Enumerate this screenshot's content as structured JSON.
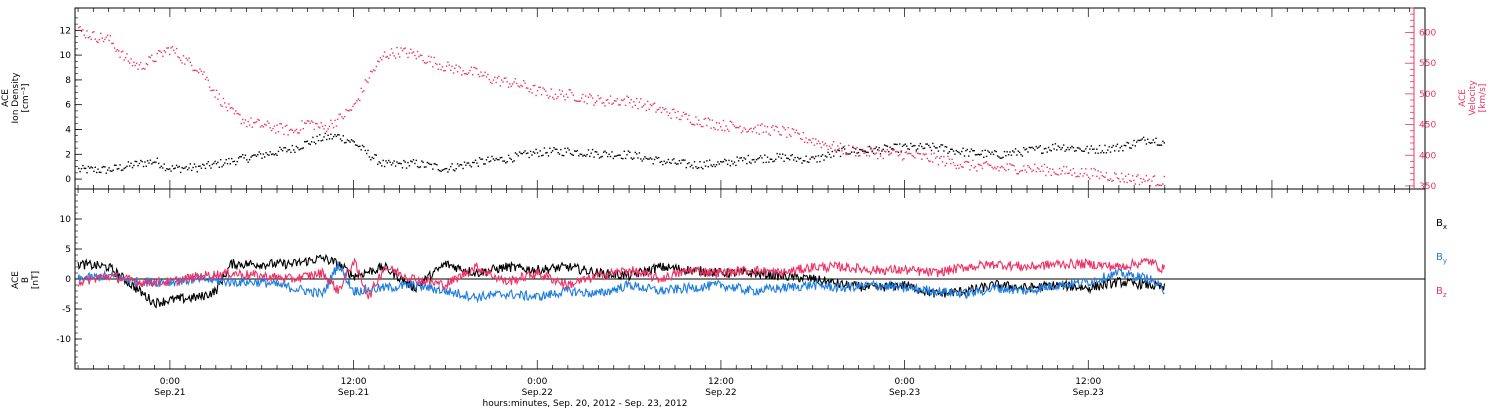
{
  "x_axis": {
    "label": "hours:minutes, Sep. 20, 2012 - Sep. 23, 2012",
    "ticks": [
      {
        "time": "0:00",
        "date": "Sep.21",
        "hour": 0
      },
      {
        "time": "12:00",
        "date": "Sep.21",
        "hour": 12
      },
      {
        "time": "0:00",
        "date": "Sep.22",
        "hour": 24
      },
      {
        "time": "12:00",
        "date": "Sep.22",
        "hour": 36
      },
      {
        "time": "0:00",
        "date": "Sep.23",
        "hour": 48
      },
      {
        "time": "12:00",
        "date": "Sep.23",
        "hour": 60
      }
    ]
  },
  "panels": {
    "top": {
      "left_label": [
        "ACE",
        "Ion Density",
        "[cm⁻³]"
      ],
      "right_label": [
        "ACE",
        "Velocity",
        "[km/s]"
      ]
    },
    "bottom": {
      "left_label": [
        "ACE",
        "B",
        "[nT]"
      ]
    }
  },
  "chart_data": [
    {
      "type": "scatter",
      "panel": "top",
      "xlim": [
        -6.2,
        82
      ],
      "x_unit": "hours from 0:00 Sep.21 2012",
      "series": [
        {
          "axis": "left",
          "color": "#000000",
          "ylim": [
            -0.8,
            13.8
          ],
          "y_ticks": [
            0,
            2,
            4,
            6,
            8,
            10,
            12
          ],
          "points": [
            [
              -6,
              0.8
            ],
            [
              -4,
              0.8
            ],
            [
              -2,
              1.3
            ],
            [
              -1,
              1.5
            ],
            [
              0,
              0.9
            ],
            [
              2,
              1.0
            ],
            [
              4,
              1.5
            ],
            [
              6,
              2.0
            ],
            [
              8,
              2.5
            ],
            [
              9,
              3.0
            ],
            [
              10,
              3.4
            ],
            [
              11,
              3.5
            ],
            [
              12,
              3.0
            ],
            [
              13,
              2.0
            ],
            [
              14,
              1.2
            ],
            [
              16,
              1.3
            ],
            [
              18,
              0.9
            ],
            [
              20,
              1.4
            ],
            [
              22,
              1.7
            ],
            [
              24,
              2.2
            ],
            [
              26,
              2.3
            ],
            [
              28,
              2.1
            ],
            [
              30,
              2.0
            ],
            [
              32,
              1.5
            ],
            [
              34,
              1.2
            ],
            [
              36,
              1.3
            ],
            [
              38,
              1.7
            ],
            [
              40,
              1.8
            ],
            [
              42,
              1.6
            ],
            [
              44,
              2.3
            ],
            [
              46,
              2.4
            ],
            [
              48,
              2.6
            ],
            [
              50,
              2.6
            ],
            [
              52,
              2.2
            ],
            [
              54,
              2.0
            ],
            [
              56,
              2.3
            ],
            [
              58,
              2.7
            ],
            [
              60,
              2.4
            ],
            [
              62,
              2.6
            ],
            [
              64,
              3.3
            ],
            [
              65,
              3.0
            ]
          ]
        },
        {
          "axis": "right",
          "color": "#ee3366",
          "ylim": [
            345,
            640
          ],
          "y_ticks": [
            350,
            400,
            450,
            500,
            550,
            600
          ],
          "points": [
            [
              -6,
              605
            ],
            [
              -5,
              595
            ],
            [
              -4,
              590
            ],
            [
              -3,
              560
            ],
            [
              -2,
              545
            ],
            [
              -1,
              560
            ],
            [
              0,
              575
            ],
            [
              1,
              555
            ],
            [
              2,
              540
            ],
            [
              3,
              500
            ],
            [
              4,
              470
            ],
            [
              5,
              455
            ],
            [
              6,
              450
            ],
            [
              7,
              445
            ],
            [
              8,
              440
            ],
            [
              9,
              455
            ],
            [
              10,
              445
            ],
            [
              11,
              460
            ],
            [
              12,
              480
            ],
            [
              13,
              530
            ],
            [
              14,
              565
            ],
            [
              15,
              570
            ],
            [
              16,
              565
            ],
            [
              17,
              555
            ],
            [
              18,
              545
            ],
            [
              19,
              540
            ],
            [
              20,
              535
            ],
            [
              21,
              525
            ],
            [
              22,
              520
            ],
            [
              23,
              515
            ],
            [
              24,
              505
            ],
            [
              25,
              500
            ],
            [
              26,
              500
            ],
            [
              28,
              490
            ],
            [
              30,
              490
            ],
            [
              32,
              475
            ],
            [
              34,
              460
            ],
            [
              36,
              450
            ],
            [
              38,
              445
            ],
            [
              40,
              440
            ],
            [
              42,
              425
            ],
            [
              44,
              410
            ],
            [
              46,
              405
            ],
            [
              48,
              402
            ],
            [
              50,
              395
            ],
            [
              52,
              385
            ],
            [
              54,
              380
            ],
            [
              56,
              380
            ],
            [
              58,
              375
            ],
            [
              60,
              372
            ],
            [
              62,
              365
            ],
            [
              64,
              360
            ],
            [
              65,
              358
            ]
          ]
        }
      ]
    },
    {
      "type": "line",
      "panel": "bottom",
      "xlim": [
        -6.2,
        82
      ],
      "ylim": [
        -15,
        15
      ],
      "y_ticks": [
        -10,
        -5,
        0,
        5,
        10
      ],
      "series": [
        {
          "name": "Bx",
          "color": "#000000",
          "points": [
            [
              -6,
              2.5
            ],
            [
              -4,
              2.0
            ],
            [
              -2,
              -2.0
            ],
            [
              -1,
              -4.0
            ],
            [
              0,
              -3.5
            ],
            [
              2,
              -3.0
            ],
            [
              3,
              -2.0
            ],
            [
              4,
              2.5
            ],
            [
              6,
              2.5
            ],
            [
              8,
              2.5
            ],
            [
              10,
              3.5
            ],
            [
              11,
              2.5
            ],
            [
              12,
              0.5
            ],
            [
              14,
              2.0
            ],
            [
              16,
              -1.5
            ],
            [
              18,
              2.5
            ],
            [
              20,
              1.0
            ],
            [
              22,
              2.0
            ],
            [
              24,
              1.5
            ],
            [
              26,
              2.0
            ],
            [
              28,
              1.0
            ],
            [
              30,
              0.5
            ],
            [
              32,
              2.0
            ],
            [
              34,
              1.5
            ],
            [
              36,
              1.0
            ],
            [
              38,
              1.0
            ],
            [
              40,
              0.5
            ],
            [
              42,
              0.0
            ],
            [
              44,
              -1.0
            ],
            [
              46,
              -1.5
            ],
            [
              48,
              -1.0
            ],
            [
              50,
              -2.5
            ],
            [
              52,
              -2.0
            ],
            [
              54,
              -1.0
            ],
            [
              56,
              -1.5
            ],
            [
              58,
              -1.0
            ],
            [
              60,
              -1.5
            ],
            [
              62,
              -0.5
            ],
            [
              64,
              -1.0
            ],
            [
              65,
              -1.5
            ]
          ]
        },
        {
          "name": "By",
          "color": "#1f7de0",
          "points": [
            [
              -6,
              0.0
            ],
            [
              -4,
              0.5
            ],
            [
              -2,
              -0.5
            ],
            [
              0,
              -0.5
            ],
            [
              2,
              0.0
            ],
            [
              4,
              -0.5
            ],
            [
              6,
              -0.5
            ],
            [
              8,
              -1.5
            ],
            [
              10,
              -2.5
            ],
            [
              11,
              2.5
            ],
            [
              12,
              -2.0
            ],
            [
              14,
              -1.5
            ],
            [
              16,
              -1.0
            ],
            [
              18,
              -2.0
            ],
            [
              20,
              -3.0
            ],
            [
              22,
              -2.5
            ],
            [
              24,
              -3.0
            ],
            [
              26,
              -2.0
            ],
            [
              28,
              -2.5
            ],
            [
              30,
              -1.0
            ],
            [
              32,
              -2.0
            ],
            [
              34,
              -1.5
            ],
            [
              36,
              -1.0
            ],
            [
              38,
              -2.0
            ],
            [
              40,
              -1.5
            ],
            [
              42,
              -1.0
            ],
            [
              44,
              -1.5
            ],
            [
              46,
              -1.0
            ],
            [
              48,
              -1.5
            ],
            [
              50,
              -2.0
            ],
            [
              52,
              -2.5
            ],
            [
              54,
              -1.5
            ],
            [
              56,
              -2.0
            ],
            [
              58,
              -1.0
            ],
            [
              60,
              -0.5
            ],
            [
              62,
              1.0
            ],
            [
              64,
              0.0
            ],
            [
              65,
              -2.0
            ]
          ]
        },
        {
          "name": "Bz",
          "color": "#ee3366",
          "points": [
            [
              -6,
              -0.5
            ],
            [
              -4,
              0.5
            ],
            [
              -2,
              -0.5
            ],
            [
              0,
              -0.5
            ],
            [
              2,
              0.5
            ],
            [
              4,
              1.0
            ],
            [
              6,
              0.5
            ],
            [
              8,
              0.0
            ],
            [
              10,
              1.0
            ],
            [
              11,
              -2.0
            ],
            [
              12,
              3.0
            ],
            [
              13,
              -3.0
            ],
            [
              14,
              2.0
            ],
            [
              16,
              0.0
            ],
            [
              18,
              -1.0
            ],
            [
              20,
              2.0
            ],
            [
              22,
              -0.5
            ],
            [
              24,
              1.0
            ],
            [
              26,
              -1.0
            ],
            [
              28,
              0.5
            ],
            [
              30,
              1.5
            ],
            [
              32,
              0.0
            ],
            [
              34,
              1.5
            ],
            [
              36,
              1.0
            ],
            [
              38,
              1.5
            ],
            [
              40,
              1.0
            ],
            [
              42,
              2.0
            ],
            [
              44,
              2.0
            ],
            [
              46,
              1.5
            ],
            [
              48,
              1.5
            ],
            [
              50,
              1.0
            ],
            [
              52,
              2.0
            ],
            [
              54,
              2.5
            ],
            [
              56,
              2.0
            ],
            [
              58,
              2.5
            ],
            [
              60,
              2.5
            ],
            [
              62,
              2.0
            ],
            [
              64,
              3.0
            ],
            [
              65,
              1.5
            ]
          ]
        }
      ]
    }
  ]
}
